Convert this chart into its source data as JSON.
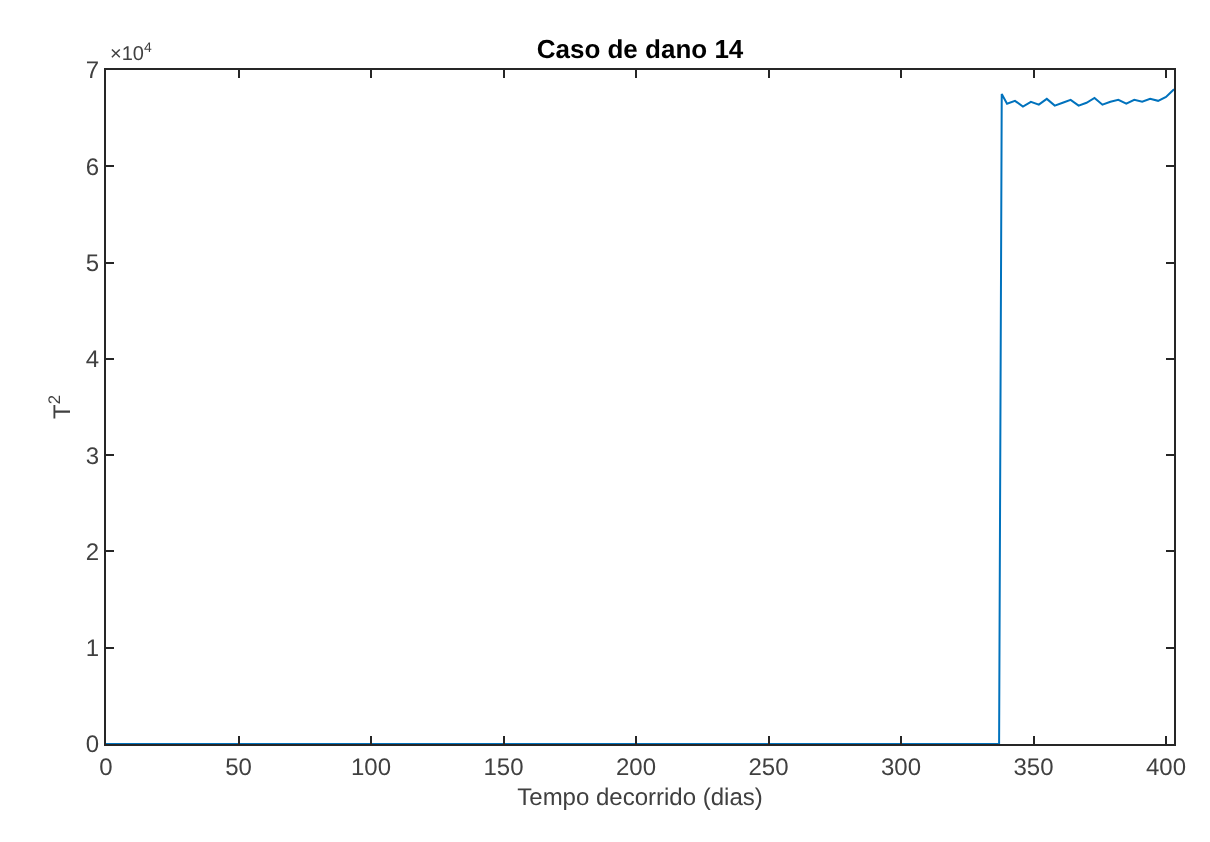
{
  "chart_data": {
    "type": "line",
    "title": "Caso de dano 14",
    "xlabel": "Tempo decorrido (dias)",
    "ylabel": "T$^{2}$",
    "annotations": [
      "×10$^{4}$"
    ],
    "series": [
      {
        "color": "#0072bd",
        "x": [
          0,
          100,
          200,
          300,
          337,
          338,
          340,
          343,
          346,
          349,
          352,
          355,
          358,
          361,
          364,
          367,
          370,
          373,
          376,
          379,
          382,
          385,
          388,
          391,
          394,
          397,
          400,
          403
        ],
        "values": [
          0,
          0,
          0,
          0,
          0,
          6.75,
          6.65,
          6.68,
          6.62,
          6.67,
          6.64,
          6.7,
          6.63,
          6.66,
          6.69,
          6.63,
          6.66,
          6.71,
          6.64,
          6.67,
          6.69,
          6.65,
          6.69,
          6.67,
          6.7,
          6.68,
          6.72,
          6.8
        ]
      }
    ],
    "xlim": [
      0,
      403
    ],
    "xticks": [
      0,
      50,
      100,
      150,
      200,
      250,
      300,
      350,
      400
    ],
    "ylim": [
      0,
      7
    ],
    "yticks": [
      0,
      1,
      2,
      3,
      4,
      5,
      6,
      7
    ],
    "marker": "none",
    "line_style": "solid"
  }
}
